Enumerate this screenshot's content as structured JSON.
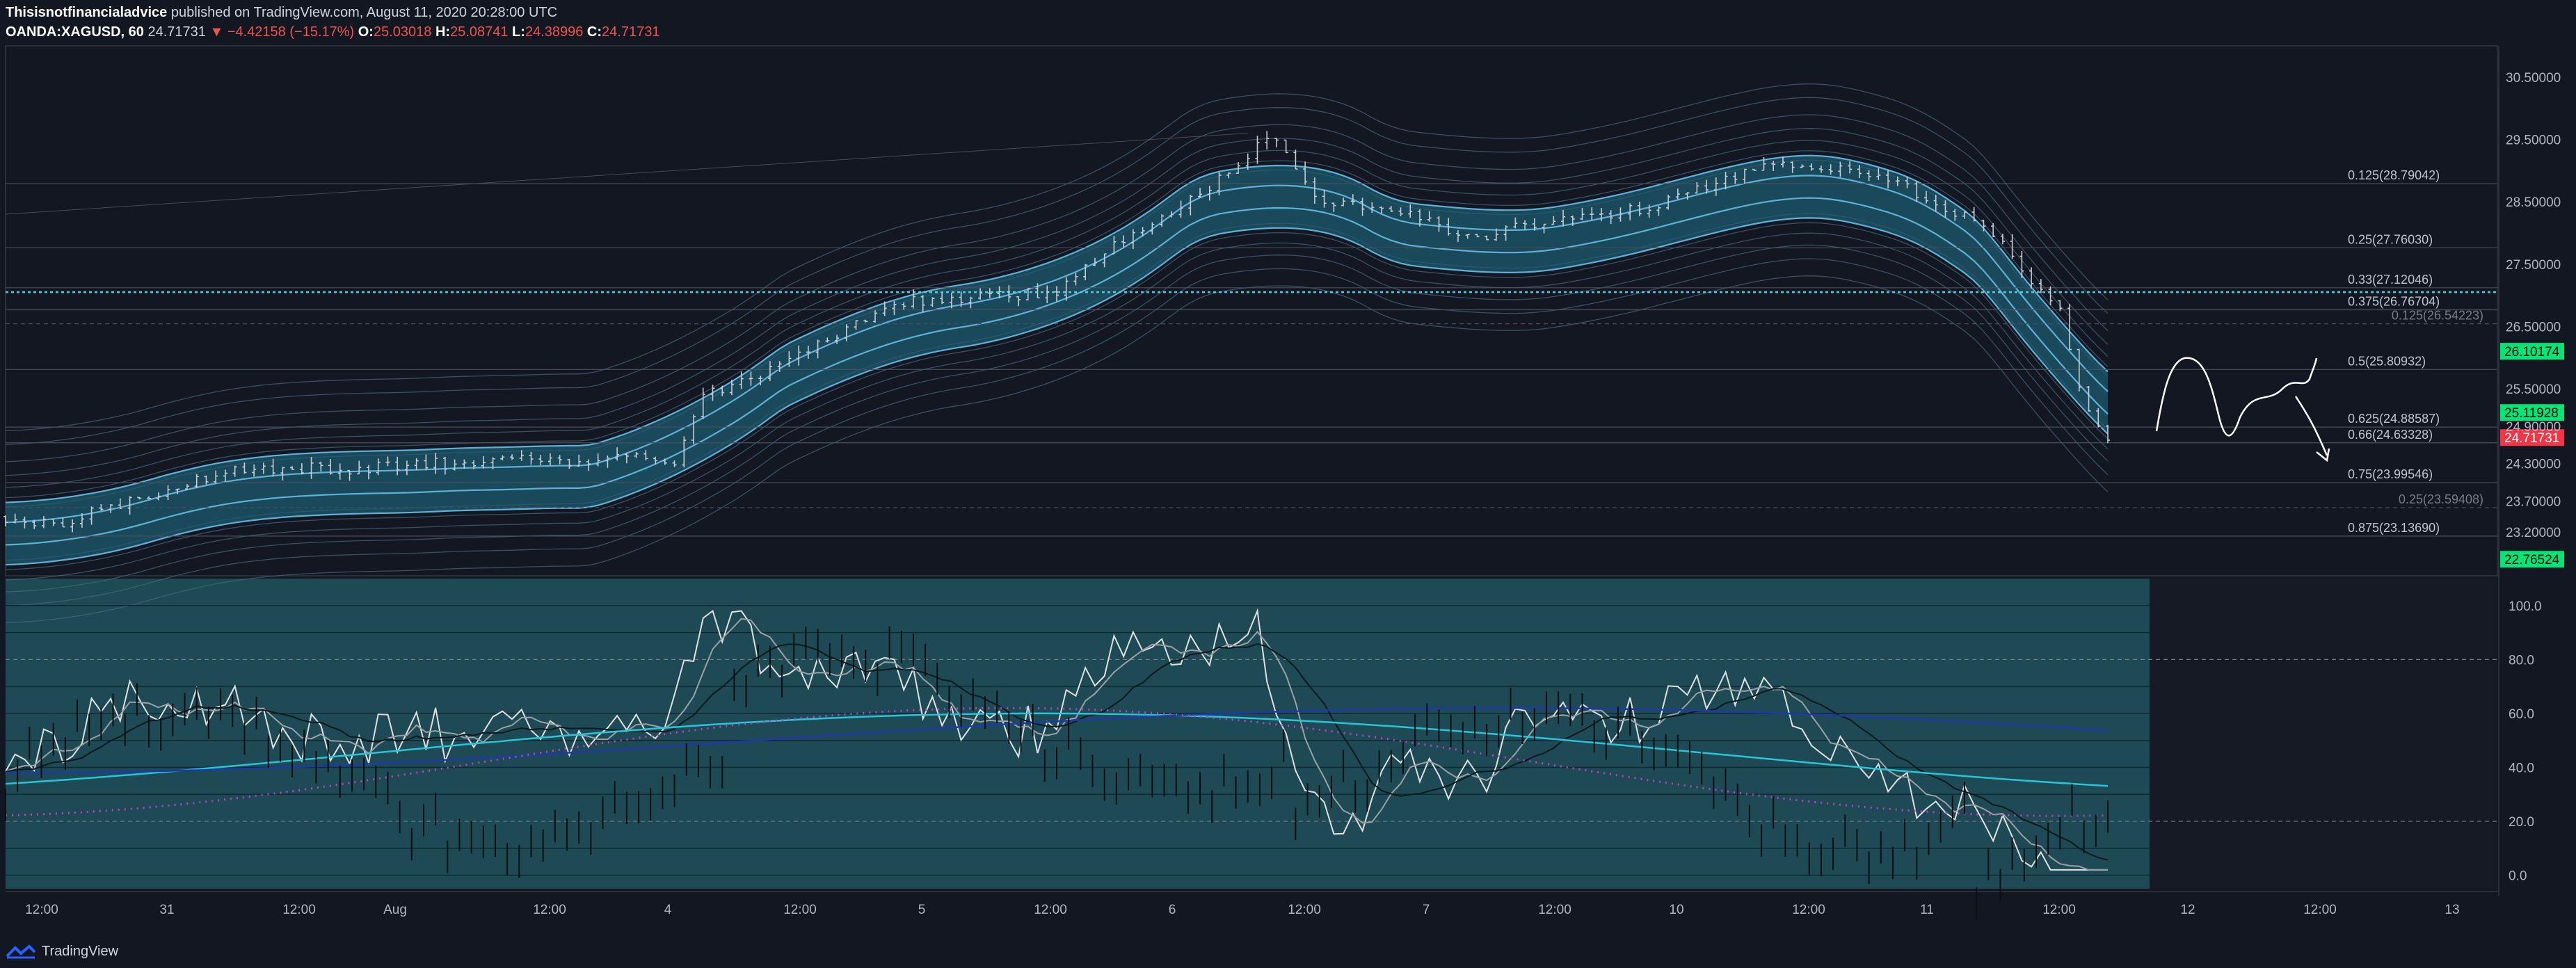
{
  "header": {
    "author": "Thisisnotfinancialadvice",
    "published": "published on TradingView.com, August 11, 2020 20:28:00 UTC"
  },
  "ohlc": {
    "symbol": "OANDA:XAGUSD, 60",
    "last": "24.71731",
    "change": "▼ −4.42158 (−15.17%)",
    "open_label": "O:",
    "open": "25.03018",
    "high_label": "H:",
    "high": "25.08741",
    "low_label": "L:",
    "low": "24.38996",
    "close_label": "C:",
    "close": "24.71731"
  },
  "footer": {
    "brand": "TradingView"
  },
  "colors": {
    "background": "#131722",
    "indicator_bg": "#1d4a55",
    "band": "#5fb0d6",
    "band_fill": "#1e5b6f",
    "candle": "#c8ccd4",
    "price_tag_green": "#00e676",
    "price_tag_red": "#f23645",
    "hline_dotted": "#4dd0e1",
    "stoch_white": "#e0e0e0",
    "ma_cyan": "#26c6da",
    "ma_blue": "#1e3aa8",
    "magenta": "#c040c0"
  },
  "chart_data": [
    {
      "type": "candlestick",
      "title": "",
      "price_axis": [
        "30.50000",
        "29.50000",
        "28.50000",
        "27.50000",
        "26.50000",
        "25.50000",
        "24.90000",
        "24.30000",
        "23.70000",
        "23.20000"
      ],
      "ylim": [
        22.5,
        31.0
      ],
      "time_axis": [
        "12:00",
        "31",
        "12:00",
        "Aug",
        "12:00",
        "4",
        "12:00",
        "5",
        "12:00",
        "6",
        "12:00",
        "7",
        "12:00",
        "10",
        "12:00",
        "11",
        "12:00",
        "12",
        "12:00",
        "13"
      ],
      "fib_levels": [
        {
          "label": "0.125(28.79042)",
          "value": 28.79042
        },
        {
          "label": "0.25(27.76030)",
          "value": 27.7603
        },
        {
          "label": "0.33(27.12046)",
          "value": 27.12046
        },
        {
          "label": "0.375(26.76704)",
          "value": 26.76704
        },
        {
          "label": "0.125(26.54223)",
          "value": 26.54223
        },
        {
          "label": "0.5(25.80932)",
          "value": 25.80932
        },
        {
          "label": "0.625(24.88587)",
          "value": 24.88587
        },
        {
          "label": "0.66(24.63328)",
          "value": 24.63328
        },
        {
          "label": "0.75(23.99546)",
          "value": 23.99546
        },
        {
          "label": "0.25(23.59408)",
          "value": 23.59408
        },
        {
          "label": "0.875(23.13690)",
          "value": 23.1369
        }
      ],
      "price_tags": [
        {
          "label": "26.10174",
          "value": 26.10174,
          "color": "#00e676"
        },
        {
          "label": "25.11928",
          "value": 25.11928,
          "color": "#00e676"
        },
        {
          "label": "24.71731",
          "value": 24.71731,
          "color": "#f23645"
        },
        {
          "label": "22.76524",
          "value": 22.76524,
          "color": "#00e676"
        }
      ],
      "dotted_line": 27.05,
      "close_path_hourly": [
        [
          0,
          23.45
        ],
        [
          20,
          23.3
        ],
        [
          40,
          23.55
        ],
        [
          60,
          23.8
        ],
        [
          80,
          24.05
        ],
        [
          100,
          24.2
        ],
        [
          120,
          24.25
        ],
        [
          140,
          24.2
        ],
        [
          160,
          24.25
        ],
        [
          180,
          24.3
        ],
        [
          200,
          24.3
        ],
        [
          220,
          24.35
        ],
        [
          240,
          24.3
        ],
        [
          260,
          24.4
        ],
        [
          280,
          24.3
        ],
        [
          290,
          25.3
        ],
        [
          300,
          25.5
        ],
        [
          320,
          25.8
        ],
        [
          340,
          26.2
        ],
        [
          360,
          26.6
        ],
        [
          380,
          26.9
        ],
        [
          400,
          26.95
        ],
        [
          420,
          27.0
        ],
        [
          440,
          27.05
        ],
        [
          460,
          27.7
        ],
        [
          480,
          28.1
        ],
        [
          500,
          28.6
        ],
        [
          520,
          29.2
        ],
        [
          530,
          29.7
        ],
        [
          540,
          29.05
        ],
        [
          550,
          28.4
        ],
        [
          570,
          28.45
        ],
        [
          590,
          28.3
        ],
        [
          610,
          27.9
        ],
        [
          630,
          28.05
        ],
        [
          650,
          28.2
        ],
        [
          670,
          28.3
        ],
        [
          690,
          28.4
        ],
        [
          710,
          28.7
        ],
        [
          730,
          29.0
        ],
        [
          750,
          29.1
        ],
        [
          770,
          29.05
        ],
        [
          790,
          28.9
        ],
        [
          810,
          28.4
        ],
        [
          830,
          28.1
        ],
        [
          840,
          27.6
        ],
        [
          850,
          27.1
        ],
        [
          860,
          26.8
        ],
        [
          870,
          25.2
        ],
        [
          880,
          24.72
        ]
      ],
      "hourly_x_range": [
        0,
        880
      ]
    },
    {
      "type": "line",
      "title": "",
      "y_axis": [
        "100.0",
        "80.0",
        "60.0",
        "40.0",
        "20.0",
        "0.0"
      ],
      "ylim": [
        -5,
        110
      ],
      "series_values_note": ""
    }
  ]
}
